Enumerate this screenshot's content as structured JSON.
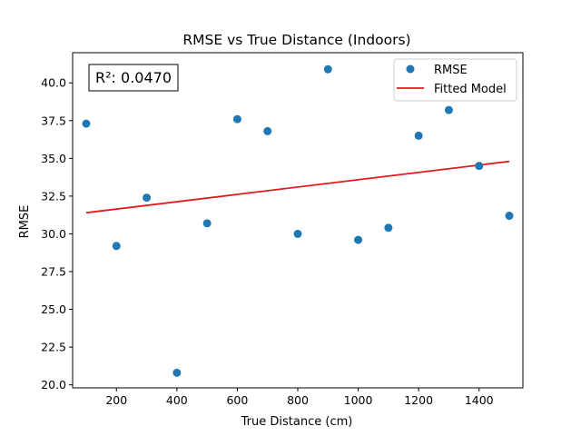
{
  "chart_data": {
    "type": "scatter",
    "title": "RMSE vs True Distance (Indoors)",
    "xlabel": "True Distance (cm)",
    "ylabel": "RMSE",
    "xlim": [
      55,
      1545
    ],
    "ylim": [
      19.8,
      42.0
    ],
    "xticks": [
      200,
      400,
      600,
      800,
      1000,
      1200,
      1400
    ],
    "yticks": [
      20.0,
      22.5,
      25.0,
      27.5,
      30.0,
      32.5,
      35.0,
      37.5,
      40.0
    ],
    "grid": false,
    "legend_position": "top-right",
    "annotation": "R²: 0.0470",
    "series": [
      {
        "name": "RMSE",
        "kind": "scatter",
        "color": "#1f77b4",
        "x": [
          100,
          200,
          300,
          400,
          500,
          600,
          700,
          800,
          900,
          1000,
          1100,
          1200,
          1300,
          1400,
          1500
        ],
        "y": [
          37.3,
          29.2,
          32.4,
          20.8,
          30.7,
          37.6,
          36.8,
          30.0,
          40.9,
          29.6,
          30.4,
          36.5,
          38.2,
          34.5,
          31.2
        ]
      },
      {
        "name": "Fitted Model",
        "kind": "line",
        "color": "#e31a1c",
        "x": [
          100,
          1500
        ],
        "y": [
          31.4,
          34.8
        ]
      }
    ]
  }
}
